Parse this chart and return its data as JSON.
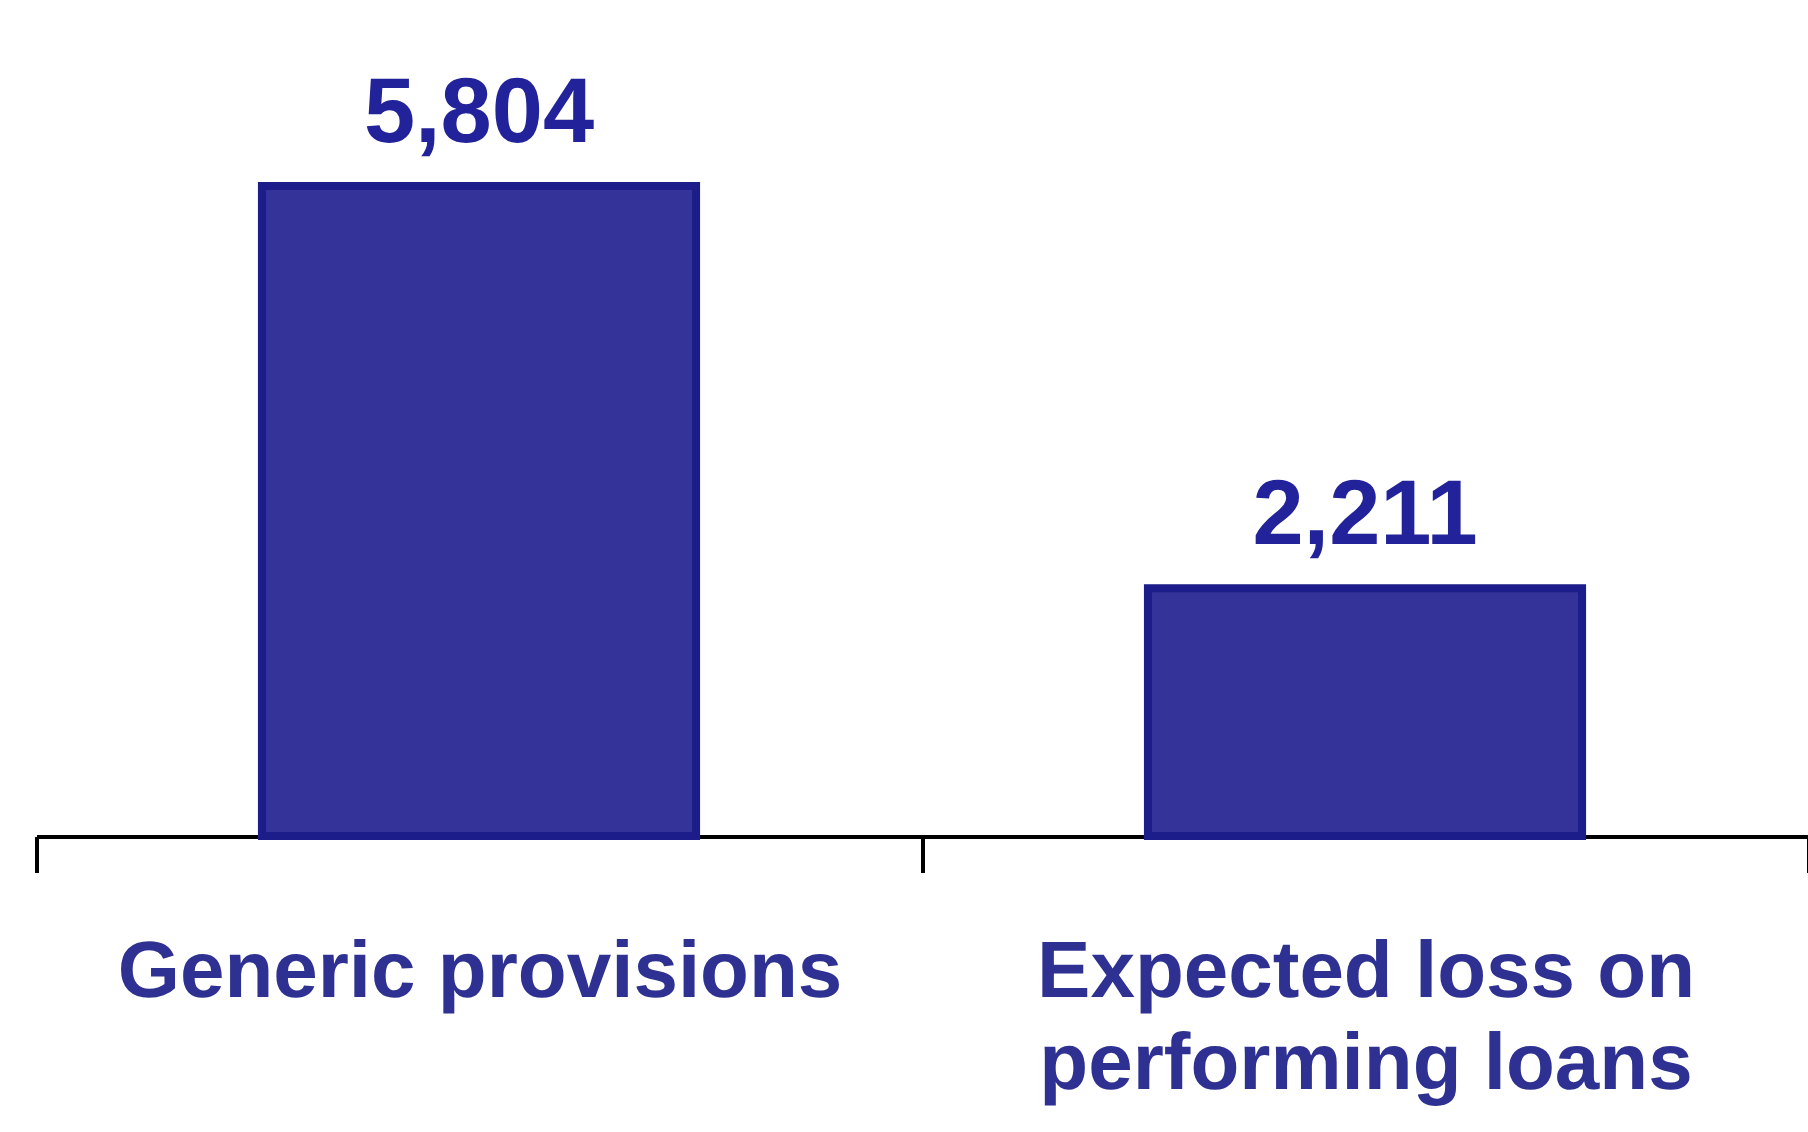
{
  "chart_data": {
    "type": "bar",
    "categories": [
      "Generic provisions",
      "Expected loss on performing loans"
    ],
    "values": [
      5804,
      2211
    ],
    "color": "#333399",
    "value_labels": [
      "5,804",
      "2,211"
    ]
  }
}
